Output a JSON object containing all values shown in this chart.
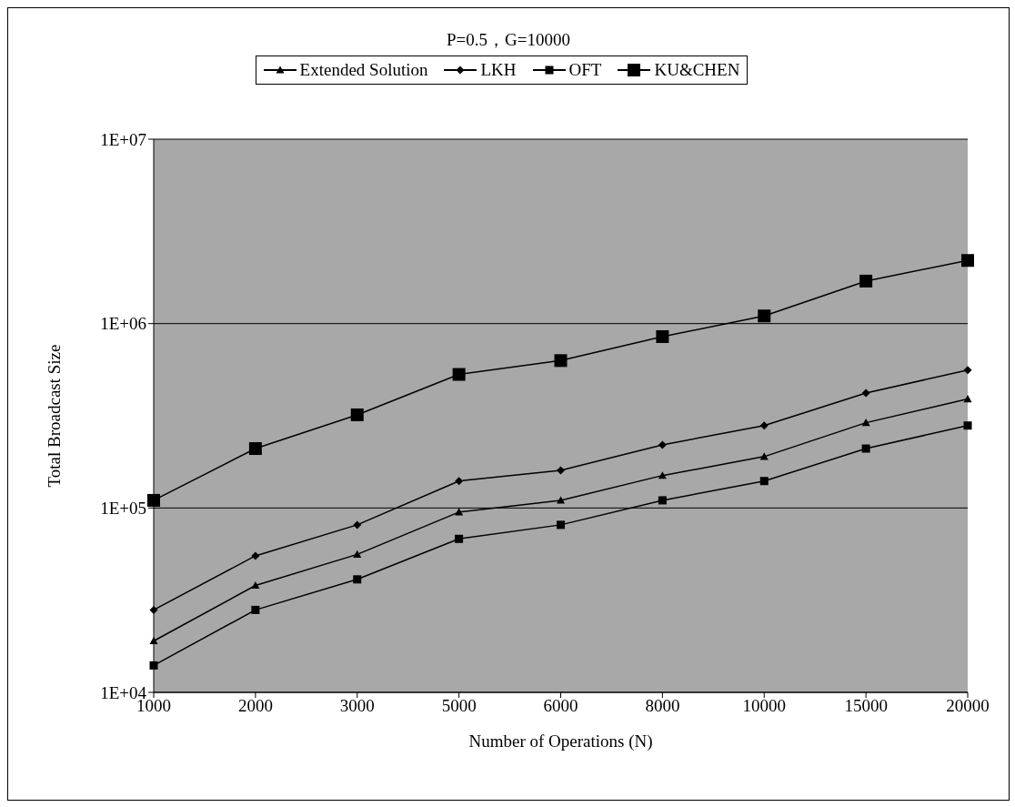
{
  "chart_data": {
    "type": "line",
    "title": "P=0.5，G=10000",
    "xlabel": "Number of Operations (N)",
    "ylabel": "Total Broadcast Size",
    "categories": [
      "1000",
      "2000",
      "3000",
      "5000",
      "6000",
      "8000",
      "10000",
      "15000",
      "20000"
    ],
    "series": [
      {
        "name": "Extended Solution",
        "color": "#000000",
        "marker": "triangle",
        "values": [
          19000,
          38000,
          56000,
          95000,
          110000,
          150000,
          190000,
          290000,
          390000
        ]
      },
      {
        "name": "LKH",
        "color": "#000000",
        "marker": "diamond",
        "values": [
          28000,
          55000,
          81000,
          140000,
          160000,
          220000,
          280000,
          420000,
          560000
        ]
      },
      {
        "name": "OFT",
        "color": "#000000",
        "marker": "square",
        "values": [
          14000,
          28000,
          41000,
          68000,
          81000,
          110000,
          140000,
          210000,
          280000
        ]
      },
      {
        "name": "KU&CHEN",
        "color": "#000000",
        "marker": "square",
        "values": [
          110000,
          210000,
          320000,
          530000,
          630000,
          850000,
          1100000,
          1700000,
          2200000
        ]
      }
    ],
    "log": "y",
    "ylim": [
      10000,
      10000000
    ],
    "yticks": [
      {
        "value": 10000,
        "label": "1E+04"
      },
      {
        "value": 100000,
        "label": "1E+05"
      },
      {
        "value": 1000000,
        "label": "1E+06"
      },
      {
        "value": 10000000,
        "label": "1E+07"
      }
    ],
    "grid": "y",
    "legend": "top",
    "line_style": "solid"
  }
}
